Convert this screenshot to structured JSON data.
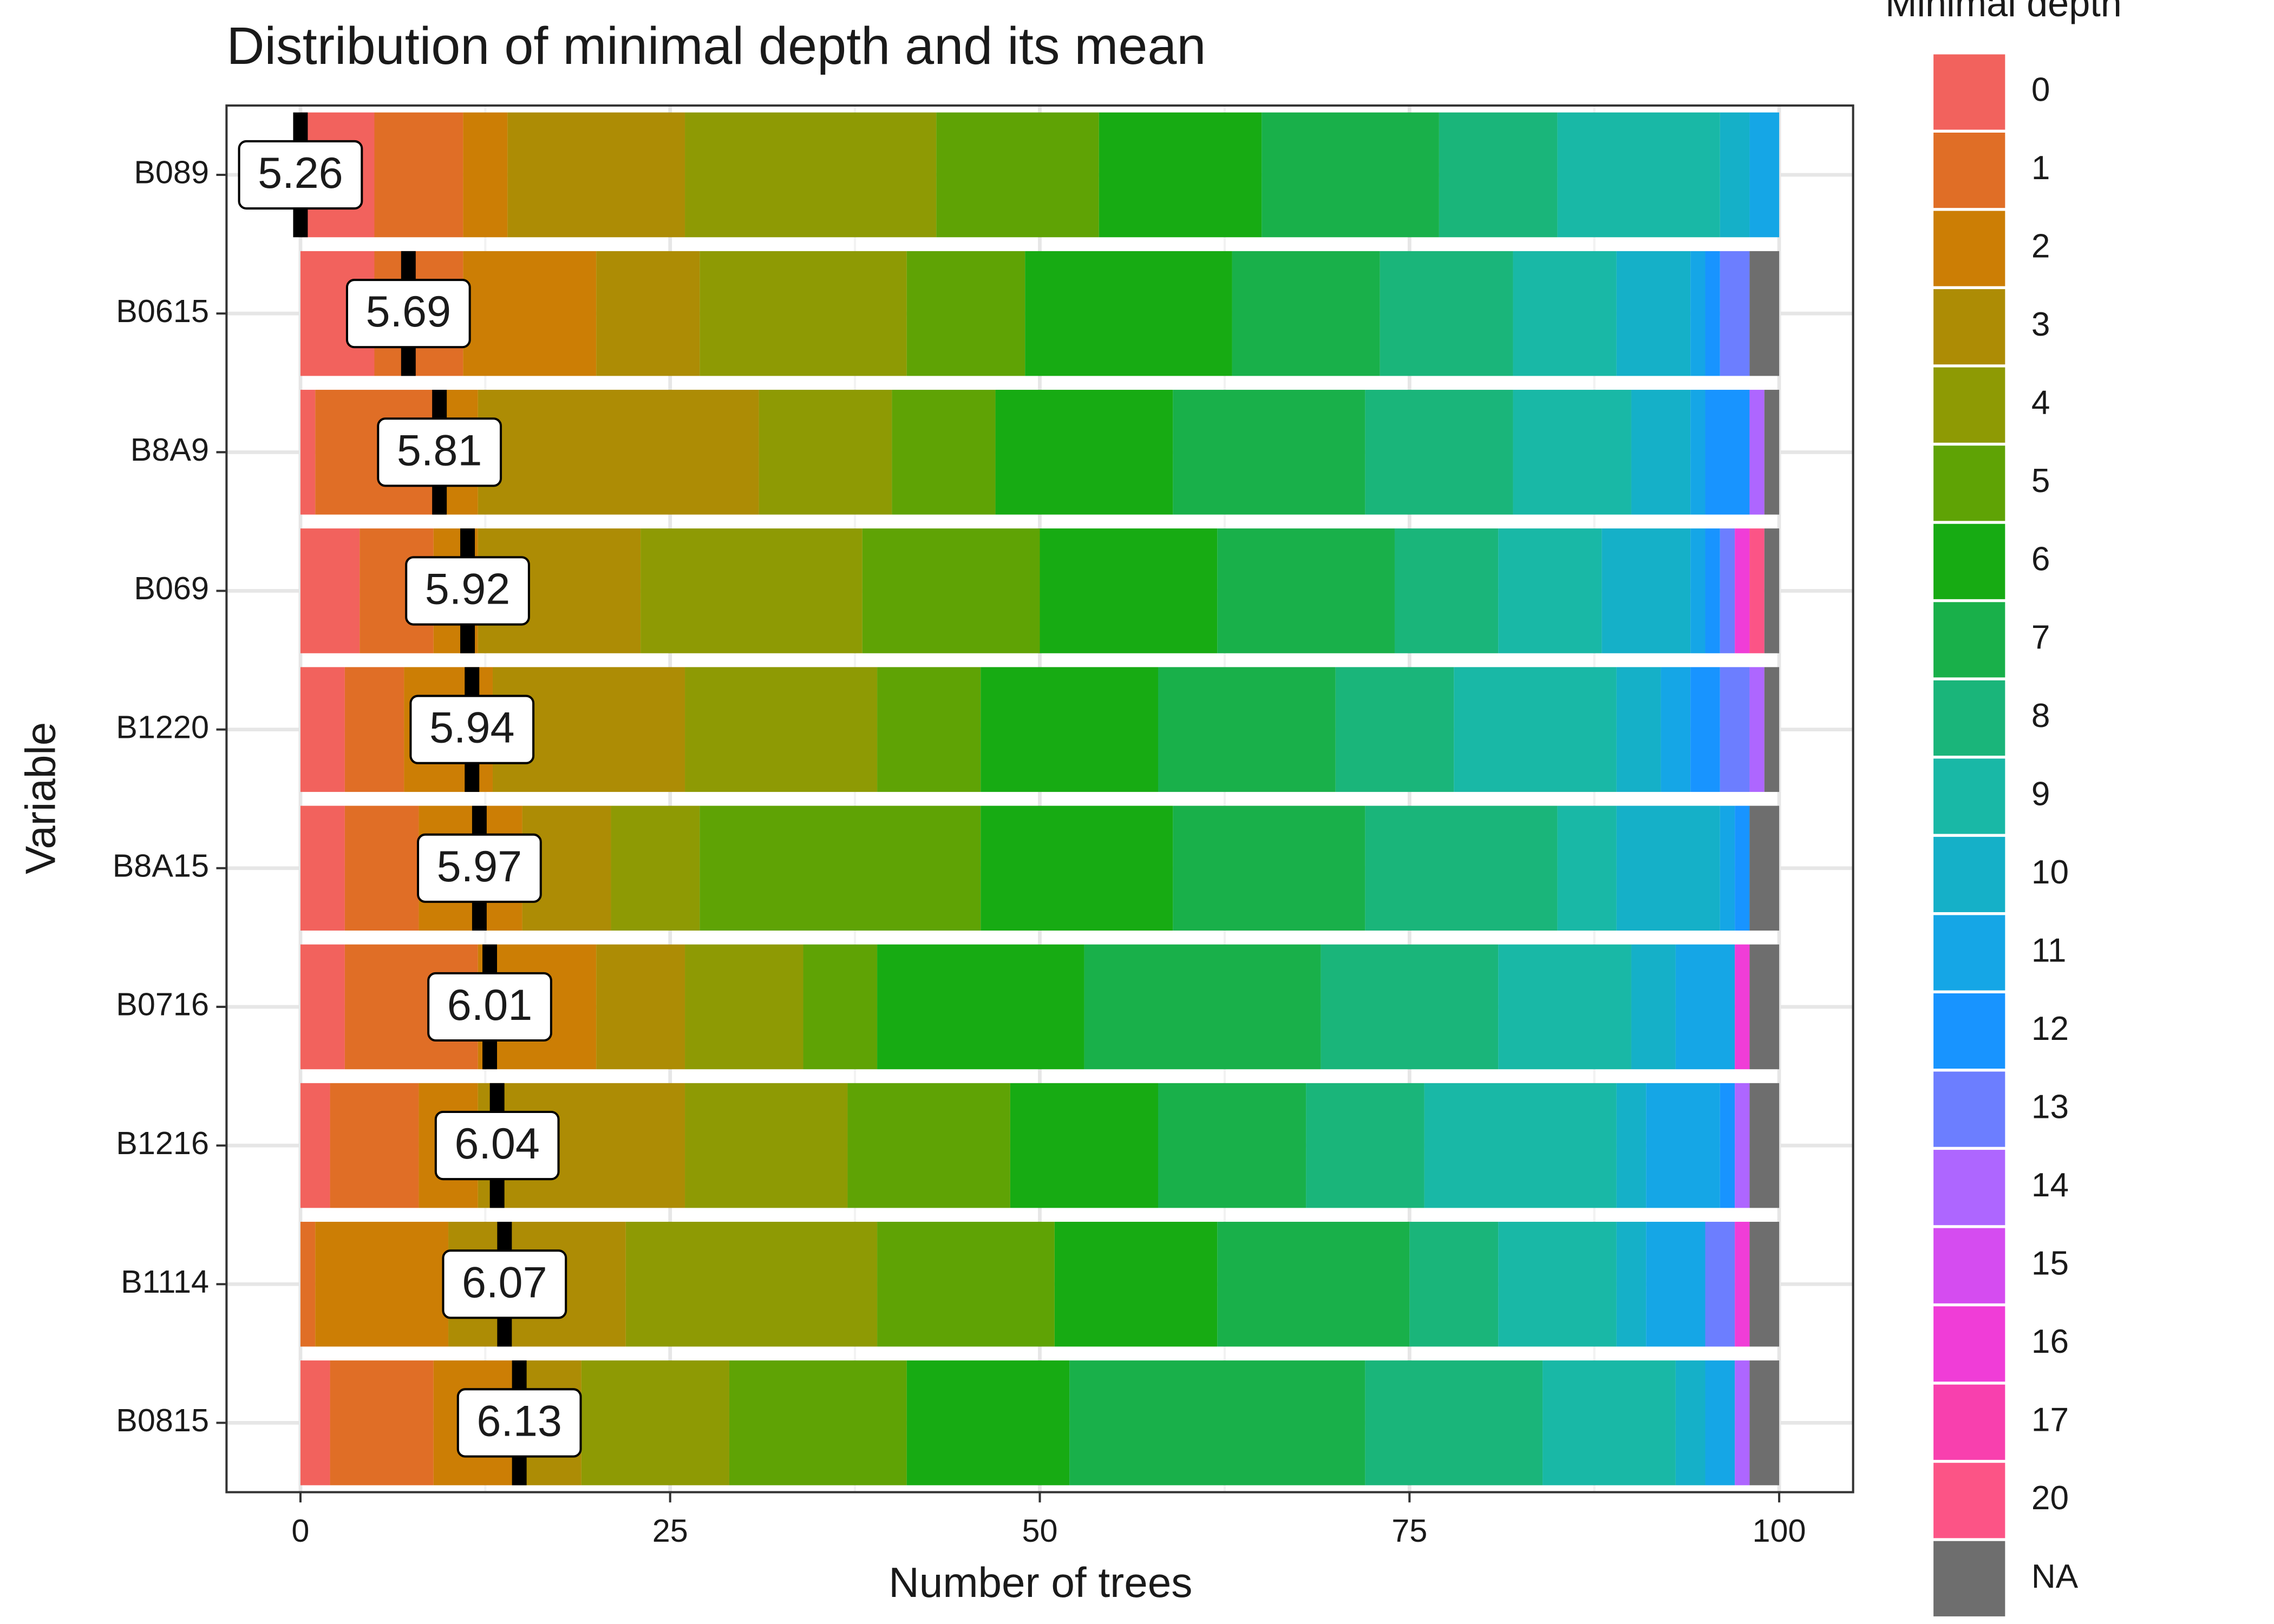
{
  "chart_data": {
    "type": "stacked-bar-horizontal",
    "title": "Distribution of minimal depth and its mean",
    "x_label": "Number of trees",
    "y_label": "Variable",
    "legend_title": "Minimal depth",
    "categories": [
      "B089",
      "B0615",
      "B8A9",
      "B069",
      "B1220",
      "B8A15",
      "B0716",
      "B1216",
      "B1114",
      "B0815"
    ],
    "xlim": [
      -5,
      105
    ],
    "xticks": [
      0,
      25,
      50,
      75,
      100
    ],
    "grid": true,
    "mean_labels": [
      5.26,
      5.69,
      5.81,
      5.92,
      5.94,
      5.97,
      6.01,
      6.04,
      6.07,
      6.13
    ],
    "mean_x": [
      0,
      7.3,
      9.4,
      11.3,
      11.6,
      12.1,
      12.8,
      13.3,
      13.8,
      14.8
    ],
    "series": [
      {
        "name": "0",
        "color": "#F2625D",
        "values": [
          5,
          5,
          1,
          4,
          3,
          3,
          3,
          2,
          0,
          2
        ]
      },
      {
        "name": "1",
        "color": "#E06E26",
        "values": [
          6,
          6,
          8,
          5,
          4,
          5,
          9,
          6,
          1,
          7
        ]
      },
      {
        "name": "2",
        "color": "#CC7E05",
        "values": [
          3,
          9,
          3,
          3,
          6,
          7,
          8,
          4,
          9,
          6
        ]
      },
      {
        "name": "3",
        "color": "#AD8C05",
        "values": [
          12,
          7,
          19,
          11,
          13,
          6,
          6,
          14,
          12,
          4
        ]
      },
      {
        "name": "4",
        "color": "#8E9A04",
        "values": [
          17,
          14,
          9,
          15,
          13,
          6,
          8,
          11,
          17,
          10
        ]
      },
      {
        "name": "5",
        "color": "#5FA305",
        "values": [
          11,
          8,
          7,
          12,
          7,
          19,
          5,
          11,
          12,
          12
        ]
      },
      {
        "name": "6",
        "color": "#17AB13",
        "values": [
          11,
          14,
          12,
          12,
          12,
          13,
          14,
          10,
          11,
          11
        ]
      },
      {
        "name": "7",
        "color": "#19B04A",
        "values": [
          12,
          10,
          13,
          12,
          12,
          13,
          16,
          10,
          13,
          20
        ]
      },
      {
        "name": "8",
        "color": "#1AB57A",
        "values": [
          8,
          9,
          10,
          7,
          8,
          13,
          12,
          8,
          6,
          12
        ]
      },
      {
        "name": "9",
        "color": "#19B8A6",
        "values": [
          11,
          7,
          8,
          7,
          11,
          4,
          9,
          13,
          8,
          9
        ]
      },
      {
        "name": "10",
        "color": "#15B0C8",
        "values": [
          2,
          5,
          4,
          6,
          3,
          7,
          3,
          2,
          2,
          2
        ]
      },
      {
        "name": "11",
        "color": "#15A6E6",
        "values": [
          2,
          1,
          1,
          1,
          2,
          1,
          4,
          5,
          4,
          2
        ]
      },
      {
        "name": "12",
        "color": "#1894FF",
        "values": [
          0,
          1,
          3,
          1,
          2,
          1,
          0,
          1,
          0,
          0
        ]
      },
      {
        "name": "13",
        "color": "#6C7EFF",
        "values": [
          0,
          2,
          0,
          1,
          2,
          0,
          0,
          0,
          2,
          0
        ]
      },
      {
        "name": "14",
        "color": "#AE66FF",
        "values": [
          0,
          0,
          1,
          0,
          1,
          0,
          0,
          1,
          0,
          1
        ]
      },
      {
        "name": "15",
        "color": "#D54CF0",
        "values": [
          0,
          0,
          0,
          0,
          0,
          0,
          0,
          0,
          0,
          0
        ]
      },
      {
        "name": "16",
        "color": "#F03DD7",
        "values": [
          0,
          0,
          0,
          1,
          0,
          0,
          1,
          0,
          1,
          0
        ]
      },
      {
        "name": "17",
        "color": "#F840AE",
        "values": [
          0,
          0,
          0,
          0,
          0,
          0,
          0,
          0,
          0,
          0
        ]
      },
      {
        "name": "20",
        "color": "#FC5486",
        "values": [
          0,
          0,
          0,
          1,
          0,
          0,
          0,
          0,
          0,
          0
        ]
      },
      {
        "name": "NA",
        "color": "#6E6E6E",
        "values": [
          0,
          2,
          1,
          1,
          1,
          2,
          2,
          2,
          2,
          2
        ]
      }
    ]
  }
}
